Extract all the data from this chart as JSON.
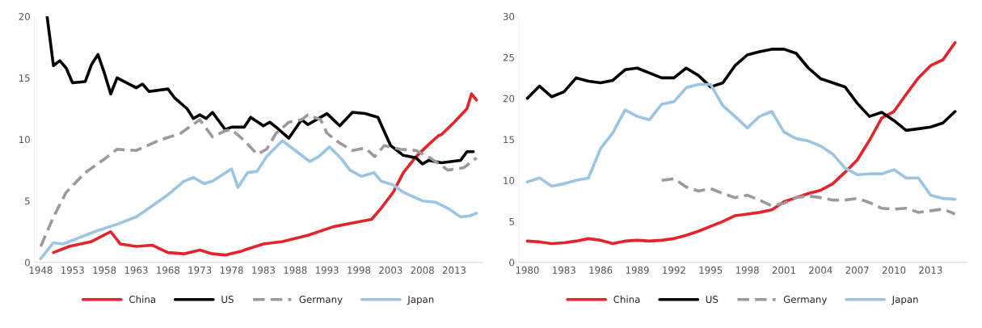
{
  "chart_data": [
    {
      "type": "line",
      "xlim": [
        1947,
        2017.5
      ],
      "xticks": [
        1948,
        1953,
        1958,
        1963,
        1968,
        1973,
        1978,
        1983,
        1988,
        1993,
        1998,
        2003,
        2008,
        2013
      ],
      "ylim": [
        0,
        20
      ],
      "yticks": [
        0,
        5,
        10,
        15,
        20
      ],
      "grid": false,
      "legend": "bottom",
      "marker": "none",
      "series": [
        {
          "name": "China",
          "color": "#e3242b",
          "line_style": "solid",
          "x": [
            1950,
            1952.5,
            1956,
            1959,
            1960.5,
            1963,
            1965.5,
            1968,
            1970.5,
            1973,
            1975,
            1977,
            1979.5,
            1980,
            1983,
            1986,
            1990,
            1994,
            1998,
            2000,
            2001.5,
            2003.4,
            2005,
            2007,
            2008.8,
            2010.5,
            2011,
            2013,
            2015,
            2015.7,
            2016.5
          ],
          "values": [
            0.8,
            1.3,
            1.7,
            2.5,
            1.5,
            1.3,
            1.4,
            0.8,
            0.7,
            1.0,
            0.7,
            0.6,
            0.9,
            1.0,
            1.5,
            1.7,
            2.2,
            2.9,
            3.3,
            3.5,
            4.4,
            5.7,
            7.3,
            8.6,
            9.5,
            10.3,
            10.4,
            11.4,
            12.5,
            13.7,
            13.2
          ]
        },
        {
          "name": "US",
          "color": "#000000",
          "line_style": "solid",
          "x": [
            1949,
            1950,
            1951,
            1952,
            1953,
            1955,
            1956,
            1957,
            1958,
            1959,
            1960,
            1963,
            1964,
            1965,
            1968,
            1969,
            1971,
            1972,
            1973,
            1974,
            1975,
            1976,
            1977,
            1978,
            1980,
            1981,
            1983,
            1984,
            1985,
            1987,
            1989,
            1990,
            1992,
            1993,
            1995,
            1997,
            1999,
            2001,
            2003,
            2005,
            2007,
            2008,
            2009,
            2011,
            2014,
            2015,
            2016
          ],
          "values": [
            20.0,
            16.0,
            16.4,
            15.8,
            14.6,
            14.7,
            16.1,
            16.9,
            15.4,
            13.7,
            15.0,
            14.2,
            14.5,
            13.9,
            14.1,
            13.4,
            12.5,
            11.7,
            12.0,
            11.7,
            12.2,
            11.5,
            10.8,
            11.0,
            11.0,
            11.8,
            11.1,
            11.4,
            11.0,
            10.1,
            11.6,
            11.2,
            11.8,
            12.1,
            11.1,
            12.2,
            12.1,
            11.8,
            9.5,
            8.7,
            8.5,
            8.0,
            8.3,
            8.1,
            8.3,
            9.0,
            9.0
          ]
        },
        {
          "name": "Germany",
          "color": "#a09898",
          "line_style": "dashed",
          "x": [
            1948,
            1950,
            1952,
            1955,
            1958,
            1960,
            1963,
            1966.5,
            1970,
            1973,
            1975,
            1977,
            1978,
            1980,
            1982,
            1983.5,
            1985,
            1987,
            1989,
            1990,
            1992,
            1993,
            1995,
            1997,
            1999,
            2000.5,
            2002,
            2004.5,
            2007,
            2009.5,
            2012,
            2014.5,
            2016.5
          ],
          "values": [
            1.3,
            3.7,
            5.7,
            7.3,
            8.4,
            9.2,
            9.1,
            9.9,
            10.5,
            11.6,
            10.2,
            10.7,
            10.8,
            9.9,
            8.8,
            9.2,
            10.5,
            11.4,
            11.6,
            12.0,
            11.6,
            10.5,
            9.7,
            9.1,
            9.3,
            8.6,
            9.5,
            9.2,
            9.1,
            8.4,
            7.5,
            7.7,
            8.5
          ]
        },
        {
          "name": "Japan",
          "color": "#9cc5e3",
          "line_style": "solid",
          "x": [
            1948,
            1950,
            1951.5,
            1954,
            1957,
            1960,
            1963,
            1965,
            1968,
            1970.5,
            1972,
            1973.7,
            1975,
            1978,
            1979,
            1980.5,
            1982,
            1983.5,
            1986,
            1988,
            1990.3,
            1991.7,
            1993.4,
            1995.3,
            1996.6,
            1998.4,
            2000.4,
            2001.5,
            2003.4,
            2005,
            2008,
            2010,
            2012,
            2014,
            2015.5,
            2016.5
          ],
          "values": [
            0.3,
            1.6,
            1.5,
            2.0,
            2.6,
            3.1,
            3.7,
            4.4,
            5.5,
            6.6,
            6.9,
            6.4,
            6.6,
            7.6,
            6.1,
            7.3,
            7.4,
            8.6,
            9.9,
            9.1,
            8.2,
            8.6,
            9.4,
            8.4,
            7.5,
            7.0,
            7.3,
            6.6,
            6.3,
            5.7,
            5.0,
            4.9,
            4.4,
            3.7,
            3.8,
            4.0
          ]
        }
      ]
    },
    {
      "type": "line",
      "xlim": [
        1979.3,
        2016
      ],
      "xticks": [
        1980,
        1983,
        1986,
        1989,
        1992,
        1995,
        1998,
        2001,
        2004,
        2007,
        2010,
        2013
      ],
      "ylim": [
        0,
        30
      ],
      "yticks": [
        0,
        5,
        10,
        15,
        20,
        25,
        30
      ],
      "grid": false,
      "legend": "bottom",
      "marker": "none",
      "series": [
        {
          "name": "China",
          "color": "#e3242b",
          "line_style": "solid",
          "x": [
            1980,
            1981,
            1982,
            1983,
            1984,
            1985,
            1986,
            1987,
            1988,
            1989,
            1990,
            1991,
            1992,
            1993,
            1994,
            1995,
            1996,
            1997,
            1998,
            1999,
            2000,
            2001,
            2002,
            2003,
            2004,
            2005,
            2006,
            2007,
            2008,
            2009,
            2010,
            2011,
            2012,
            2013,
            2014,
            2015
          ],
          "values": [
            2.6,
            2.5,
            2.3,
            2.4,
            2.6,
            2.9,
            2.7,
            2.3,
            2.6,
            2.7,
            2.6,
            2.7,
            2.9,
            3.3,
            3.8,
            4.4,
            5.0,
            5.7,
            5.9,
            6.1,
            6.4,
            7.4,
            7.9,
            8.4,
            8.8,
            9.6,
            11.0,
            12.5,
            14.9,
            17.6,
            18.4,
            20.5,
            22.5,
            24.0,
            24.7,
            26.8
          ]
        },
        {
          "name": "US",
          "color": "#000000",
          "line_style": "solid",
          "x": [
            1980,
            1981,
            1982,
            1983,
            1984,
            1985,
            1986,
            1987,
            1988,
            1989,
            1990,
            1991,
            1992,
            1993,
            1994,
            1995,
            1996,
            1997,
            1998,
            1999,
            2000,
            2001,
            2002,
            2003,
            2004,
            2005,
            2006,
            2007,
            2008,
            2009,
            2010,
            2011,
            2012,
            2013,
            2014,
            2015
          ],
          "values": [
            20.0,
            21.5,
            20.2,
            20.8,
            22.5,
            22.1,
            21.9,
            22.2,
            23.5,
            23.7,
            23.1,
            22.5,
            22.5,
            23.7,
            22.8,
            21.4,
            21.9,
            24.0,
            25.3,
            25.7,
            26.0,
            26.0,
            25.5,
            23.7,
            22.4,
            21.9,
            21.4,
            19.4,
            17.8,
            18.3,
            17.3,
            16.1,
            16.3,
            16.5,
            17.0,
            18.4
          ]
        },
        {
          "name": "Germany",
          "color": "#a09898",
          "line_style": "dashed",
          "x": [
            1991,
            1992,
            1993,
            1994,
            1995,
            1996,
            1997,
            1998,
            1999,
            2000,
            2001,
            2002,
            2003,
            2004,
            2005,
            2006,
            2007,
            2008,
            2009,
            2010,
            2011,
            2012,
            2013,
            2014,
            2015
          ],
          "values": [
            10.0,
            10.2,
            9.2,
            8.7,
            9.0,
            8.4,
            7.9,
            8.2,
            7.6,
            6.9,
            7.2,
            7.9,
            8.1,
            7.9,
            7.6,
            7.6,
            7.8,
            7.3,
            6.6,
            6.5,
            6.6,
            6.1,
            6.3,
            6.5,
            5.9
          ]
        },
        {
          "name": "Japan",
          "color": "#9cc5e3",
          "line_style": "solid",
          "x": [
            1980,
            1981,
            1982,
            1983,
            1984,
            1985,
            1986,
            1987,
            1988,
            1989,
            1990,
            1991,
            1992,
            1993,
            1994,
            1995,
            1996,
            1997,
            1998,
            1999,
            2000,
            2001,
            2002,
            2003,
            2004,
            2005,
            2006,
            2007,
            2008,
            2009,
            2010,
            2011,
            2012,
            2013,
            2014,
            2015
          ],
          "values": [
            9.8,
            10.3,
            9.3,
            9.6,
            10.0,
            10.3,
            13.9,
            15.8,
            18.6,
            17.8,
            17.4,
            19.3,
            19.6,
            21.3,
            21.7,
            21.7,
            19.1,
            17.8,
            16.4,
            17.8,
            18.4,
            15.9,
            15.1,
            14.8,
            14.2,
            13.2,
            11.5,
            10.7,
            10.8,
            10.8,
            11.3,
            10.3,
            10.3,
            8.2,
            7.8,
            7.7
          ]
        }
      ]
    }
  ]
}
